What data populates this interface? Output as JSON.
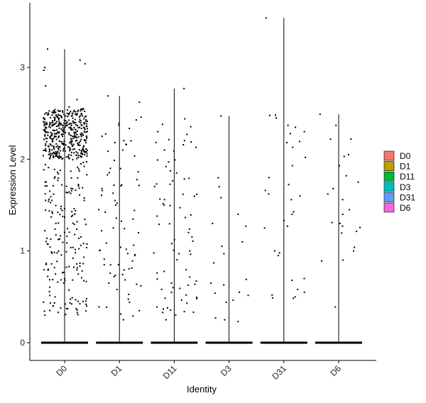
{
  "chart_data": {
    "type": "scatter",
    "subtype": "violin-jitter",
    "title": "",
    "xlabel": "Identity",
    "ylabel": "Expression Level",
    "categories": [
      "D0",
      "D1",
      "D11",
      "D3",
      "D31",
      "D6"
    ],
    "yticks": [
      0,
      1,
      2,
      3
    ],
    "ylim": [
      -0.2,
      3.65
    ],
    "grid": false,
    "legend": {
      "position": "right",
      "title": ""
    },
    "colors": {
      "D0": "#F8766D",
      "D1": "#B79F00",
      "D11": "#00BA38",
      "D3": "#00BFC4",
      "D31": "#619CFF",
      "D6": "#F564E3"
    },
    "groups": [
      {
        "name": "D0",
        "max": 3.2,
        "n_expressing": 620,
        "dense_band": [
          2.0,
          2.55
        ],
        "values": [
          3.2,
          3.08,
          3.04,
          3.0,
          2.97,
          2.8,
          2.65,
          2.57,
          2.55,
          2.52,
          2.45,
          2.4,
          0.5,
          0.45,
          0.4,
          0.35,
          0.33,
          0.3
        ]
      },
      {
        "name": "D1",
        "max": 2.69,
        "n_expressing": 80,
        "values": [
          2.69,
          2.62,
          2.25,
          2.2,
          2.18,
          2.16,
          2.1,
          1.9,
          1.83,
          1.72,
          1.71,
          1.55,
          1.5,
          1.45,
          1.22,
          1.04,
          0.95,
          0.85,
          0.72,
          0.65,
          0.58,
          0.44,
          0.29,
          0.25
        ]
      },
      {
        "name": "D11",
        "max": 2.77,
        "n_expressing": 80,
        "values": [
          2.77,
          2.44,
          2.38,
          2.3,
          2.27,
          2.13,
          2.1,
          1.92,
          1.85,
          1.73,
          1.56,
          1.5,
          1.38,
          1.2,
          1.0,
          0.97,
          0.65,
          0.6,
          0.52,
          0.48,
          0.43,
          0.38,
          0.3,
          0.25
        ]
      },
      {
        "name": "D3",
        "max": 2.47,
        "n_expressing": 22,
        "values": [
          2.47,
          1.7,
          1.58,
          1.4,
          1.3,
          1.27,
          1.1,
          1.05,
          0.97,
          0.87,
          0.69,
          0.65,
          0.63,
          0.55,
          0.54,
          0.44,
          0.27,
          0.25,
          0.23
        ]
      },
      {
        "name": "D31",
        "max": 3.54,
        "n_expressing": 35,
        "values": [
          3.54,
          2.48,
          2.45,
          2.37,
          2.3,
          2.28,
          2.13,
          2.02,
          1.93,
          1.66,
          1.62,
          1.4,
          1.33,
          1.27,
          1.25,
          1.0,
          0.98,
          0.95,
          0.7,
          0.68,
          0.58,
          0.55,
          0.52,
          0.5
        ]
      },
      {
        "name": "D6",
        "max": 2.49,
        "n_expressing": 25,
        "values": [
          2.49,
          2.37,
          2.22,
          2.05,
          2.03,
          1.93,
          1.82,
          1.75,
          1.68,
          1.62,
          1.56,
          1.45,
          1.4,
          1.31,
          1.3,
          1.27,
          1.04,
          1.0,
          0.9
        ]
      }
    ]
  }
}
